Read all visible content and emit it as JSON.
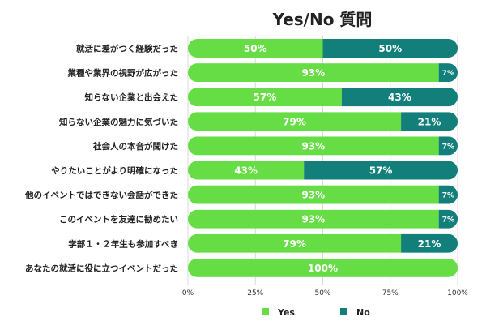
{
  "chart_data": {
    "type": "bar",
    "orientation": "horizontal",
    "stacked": true,
    "title": "Yes/No 質問",
    "categories": [
      "就活に差がつく経験だった",
      "業種や業界の視野が広がった",
      "知らない企業と出会えた",
      "知らない企業の魅力に気づいた",
      "社会人の本音が聞けた",
      "やりたいことがより明確になった",
      "他のイベントではできない会話ができた",
      "このイベントを友達に勧めたい",
      "学部１・２年生も参加すべき",
      "あなたの就活に役に立つイベントだった"
    ],
    "series": [
      {
        "name": "Yes",
        "color": "#66dd44",
        "values": [
          50,
          93,
          57,
          79,
          93,
          43,
          93,
          93,
          79,
          100
        ]
      },
      {
        "name": "No",
        "color": "#127f7a",
        "values": [
          50,
          7,
          43,
          21,
          7,
          57,
          7,
          7,
          21,
          0
        ]
      }
    ],
    "xlim": [
      0,
      100
    ],
    "xticks": [
      "0%",
      "25%",
      "50%",
      "75%",
      "100%"
    ],
    "legend": "bottom",
    "grid": true
  }
}
